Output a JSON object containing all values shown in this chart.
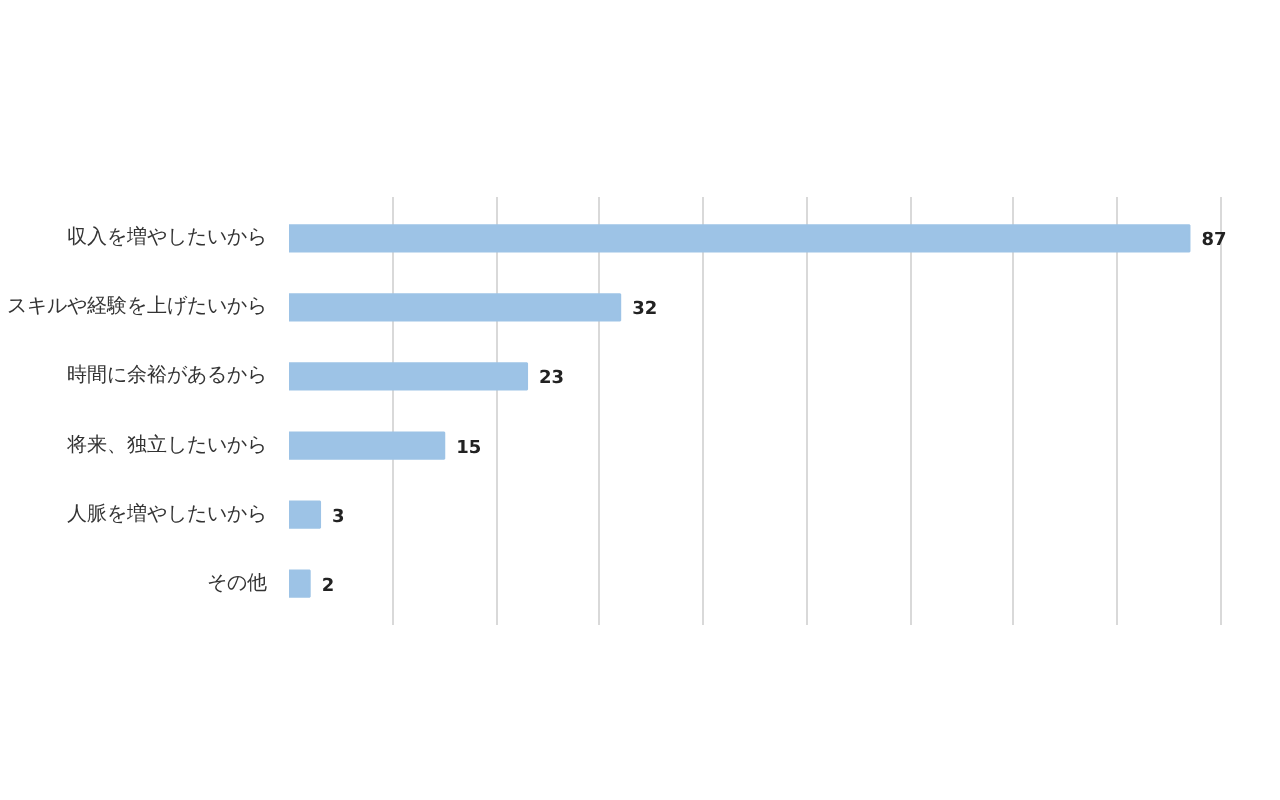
{
  "chart_data": {
    "type": "bar",
    "orientation": "horizontal",
    "categories": [
      "収入を増やしたいから",
      "スキルや経験を上げたいから",
      "時間に余裕があるから",
      "将来、独立したいから",
      "人脈を増やしたいから",
      "その他"
    ],
    "values": [
      87,
      32,
      23,
      15,
      3,
      2
    ],
    "color": "#9dc3e6",
    "data_labels": true,
    "grid": "x",
    "tick_labels": "y"
  }
}
